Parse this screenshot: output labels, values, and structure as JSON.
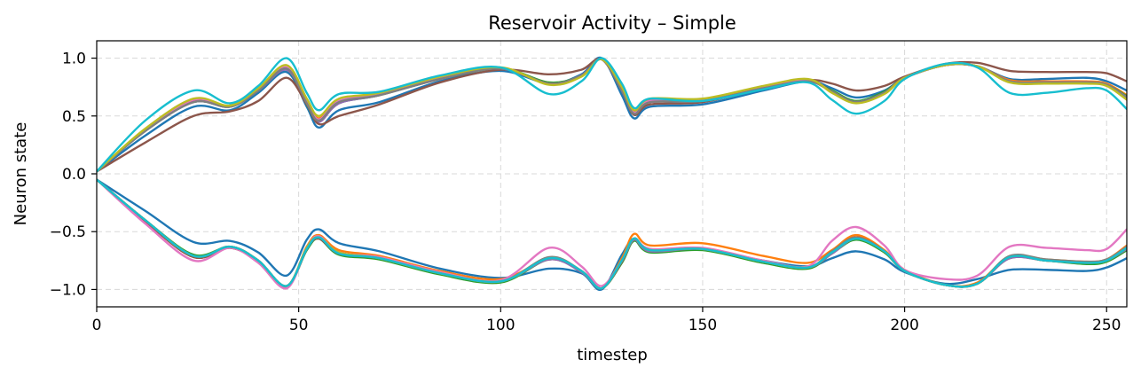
{
  "chart_data": {
    "type": "line",
    "title": "Reservoir Activity – Simple",
    "xlabel": "timestep",
    "ylabel": "Neuron state",
    "xlim": [
      0,
      255
    ],
    "ylim": [
      -1.15,
      1.15
    ],
    "grid": true,
    "legend": "none",
    "xticks": [
      0,
      50,
      100,
      150,
      200,
      250
    ],
    "xtick_labels": [
      "0",
      "50",
      "100",
      "150",
      "200",
      "250"
    ],
    "yticks": [
      1.0,
      0.5,
      0.0,
      -0.5,
      -1.0
    ],
    "ytick_labels": [
      "1.0",
      "0.5",
      "0.0",
      "−0.5",
      "−1.0"
    ],
    "x": [
      0,
      12,
      24,
      33,
      40,
      47,
      52,
      55,
      60,
      70,
      85,
      100,
      112,
      120,
      125,
      130,
      133,
      137,
      150,
      165,
      176,
      182,
      188,
      195,
      200,
      210,
      218,
      226,
      235,
      245,
      250,
      255
    ],
    "series": [
      {
        "color": "#1f77b4",
        "values": [
          0.02,
          0.33,
          0.58,
          0.55,
          0.7,
          0.88,
          0.58,
          0.4,
          0.55,
          0.62,
          0.8,
          0.89,
          0.78,
          0.86,
          1.0,
          0.68,
          0.48,
          0.58,
          0.6,
          0.72,
          0.8,
          0.74,
          0.66,
          0.72,
          0.83,
          0.94,
          0.93,
          0.82,
          0.82,
          0.83,
          0.8,
          0.72
        ]
      },
      {
        "color": "#ff7f0e",
        "values": [
          0.02,
          0.38,
          0.64,
          0.59,
          0.73,
          0.92,
          0.64,
          0.48,
          0.63,
          0.69,
          0.83,
          0.91,
          0.78,
          0.85,
          0.99,
          0.74,
          0.54,
          0.64,
          0.64,
          0.75,
          0.81,
          0.71,
          0.62,
          0.7,
          0.83,
          0.94,
          0.93,
          0.81,
          0.8,
          0.8,
          0.78,
          0.68
        ]
      },
      {
        "color": "#2ca02c",
        "values": [
          0.02,
          0.37,
          0.62,
          0.58,
          0.72,
          0.9,
          0.6,
          0.45,
          0.61,
          0.68,
          0.82,
          0.91,
          0.79,
          0.85,
          0.99,
          0.72,
          0.52,
          0.62,
          0.63,
          0.74,
          0.8,
          0.72,
          0.63,
          0.71,
          0.83,
          0.94,
          0.93,
          0.8,
          0.79,
          0.79,
          0.77,
          0.67
        ]
      },
      {
        "color": "#d62728",
        "values": [
          0.02,
          0.38,
          0.63,
          0.59,
          0.73,
          0.91,
          0.62,
          0.46,
          0.62,
          0.69,
          0.83,
          0.91,
          0.78,
          0.85,
          0.99,
          0.73,
          0.53,
          0.63,
          0.64,
          0.75,
          0.81,
          0.71,
          0.62,
          0.7,
          0.83,
          0.94,
          0.93,
          0.8,
          0.79,
          0.79,
          0.77,
          0.66
        ]
      },
      {
        "color": "#9467bd",
        "values": [
          0.02,
          0.37,
          0.62,
          0.58,
          0.72,
          0.9,
          0.61,
          0.45,
          0.61,
          0.68,
          0.82,
          0.91,
          0.78,
          0.85,
          0.99,
          0.72,
          0.52,
          0.62,
          0.63,
          0.74,
          0.8,
          0.71,
          0.62,
          0.7,
          0.83,
          0.94,
          0.93,
          0.8,
          0.79,
          0.79,
          0.77,
          0.66
        ]
      },
      {
        "color": "#8c564b",
        "values": [
          0.02,
          0.27,
          0.5,
          0.54,
          0.63,
          0.83,
          0.6,
          0.43,
          0.5,
          0.6,
          0.79,
          0.9,
          0.86,
          0.9,
          0.99,
          0.72,
          0.51,
          0.6,
          0.62,
          0.74,
          0.81,
          0.78,
          0.72,
          0.76,
          0.84,
          0.95,
          0.96,
          0.89,
          0.88,
          0.88,
          0.87,
          0.8
        ]
      },
      {
        "color": "#e377c2",
        "values": [
          0.02,
          0.38,
          0.64,
          0.59,
          0.73,
          0.92,
          0.63,
          0.47,
          0.63,
          0.69,
          0.83,
          0.91,
          0.78,
          0.85,
          0.99,
          0.73,
          0.53,
          0.63,
          0.64,
          0.75,
          0.81,
          0.71,
          0.62,
          0.7,
          0.83,
          0.94,
          0.93,
          0.8,
          0.79,
          0.79,
          0.77,
          0.66
        ]
      },
      {
        "color": "#7f7f7f",
        "values": [
          0.02,
          0.37,
          0.62,
          0.58,
          0.72,
          0.91,
          0.61,
          0.46,
          0.62,
          0.68,
          0.82,
          0.91,
          0.78,
          0.85,
          0.99,
          0.72,
          0.52,
          0.62,
          0.63,
          0.74,
          0.8,
          0.71,
          0.62,
          0.7,
          0.83,
          0.94,
          0.93,
          0.8,
          0.79,
          0.79,
          0.77,
          0.66
        ]
      },
      {
        "color": "#bcbd22",
        "values": [
          0.02,
          0.39,
          0.65,
          0.59,
          0.74,
          0.94,
          0.65,
          0.5,
          0.65,
          0.7,
          0.84,
          0.92,
          0.77,
          0.84,
          0.99,
          0.75,
          0.55,
          0.65,
          0.65,
          0.76,
          0.82,
          0.7,
          0.61,
          0.69,
          0.83,
          0.94,
          0.93,
          0.79,
          0.78,
          0.78,
          0.76,
          0.64
        ]
      },
      {
        "color": "#17becf",
        "values": [
          0.02,
          0.46,
          0.72,
          0.61,
          0.76,
          1.0,
          0.7,
          0.55,
          0.69,
          0.71,
          0.85,
          0.92,
          0.69,
          0.8,
          1.0,
          0.78,
          0.57,
          0.65,
          0.63,
          0.73,
          0.79,
          0.64,
          0.52,
          0.63,
          0.82,
          0.95,
          0.92,
          0.7,
          0.7,
          0.74,
          0.72,
          0.56
        ]
      },
      {
        "color": "#1f77b4",
        "values": [
          -0.05,
          -0.32,
          -0.59,
          -0.58,
          -0.68,
          -0.88,
          -0.57,
          -0.48,
          -0.6,
          -0.67,
          -0.82,
          -0.9,
          -0.82,
          -0.86,
          -1.0,
          -0.7,
          -0.56,
          -0.65,
          -0.65,
          -0.75,
          -0.8,
          -0.73,
          -0.67,
          -0.74,
          -0.85,
          -0.95,
          -0.91,
          -0.83,
          -0.83,
          -0.84,
          -0.81,
          -0.73
        ]
      },
      {
        "color": "#ff7f0e",
        "values": [
          -0.05,
          -0.4,
          -0.72,
          -0.63,
          -0.75,
          -0.98,
          -0.63,
          -0.53,
          -0.66,
          -0.71,
          -0.84,
          -0.91,
          -0.74,
          -0.84,
          -0.99,
          -0.73,
          -0.52,
          -0.62,
          -0.6,
          -0.71,
          -0.77,
          -0.66,
          -0.53,
          -0.66,
          -0.83,
          -0.96,
          -0.94,
          -0.72,
          -0.74,
          -0.76,
          -0.74,
          -0.62
        ]
      },
      {
        "color": "#2ca02c",
        "values": [
          -0.05,
          -0.4,
          -0.7,
          -0.63,
          -0.75,
          -0.97,
          -0.66,
          -0.56,
          -0.7,
          -0.74,
          -0.87,
          -0.94,
          -0.74,
          -0.85,
          -0.99,
          -0.77,
          -0.58,
          -0.68,
          -0.66,
          -0.77,
          -0.82,
          -0.69,
          -0.57,
          -0.68,
          -0.84,
          -0.96,
          -0.95,
          -0.73,
          -0.75,
          -0.78,
          -0.76,
          -0.66
        ]
      },
      {
        "color": "#d62728",
        "values": [
          -0.05,
          -0.41,
          -0.72,
          -0.64,
          -0.76,
          -0.98,
          -0.65,
          -0.55,
          -0.69,
          -0.73,
          -0.86,
          -0.93,
          -0.73,
          -0.84,
          -0.99,
          -0.75,
          -0.56,
          -0.66,
          -0.65,
          -0.76,
          -0.81,
          -0.68,
          -0.55,
          -0.67,
          -0.84,
          -0.96,
          -0.95,
          -0.72,
          -0.75,
          -0.77,
          -0.75,
          -0.64
        ]
      },
      {
        "color": "#9467bd",
        "values": [
          -0.05,
          -0.4,
          -0.71,
          -0.63,
          -0.75,
          -0.97,
          -0.64,
          -0.55,
          -0.68,
          -0.73,
          -0.86,
          -0.93,
          -0.74,
          -0.85,
          -0.99,
          -0.76,
          -0.57,
          -0.67,
          -0.65,
          -0.76,
          -0.81,
          -0.69,
          -0.56,
          -0.67,
          -0.84,
          -0.96,
          -0.95,
          -0.73,
          -0.75,
          -0.77,
          -0.75,
          -0.65
        ]
      },
      {
        "color": "#8c564b",
        "values": [
          -0.05,
          -0.41,
          -0.72,
          -0.64,
          -0.76,
          -0.98,
          -0.65,
          -0.56,
          -0.69,
          -0.73,
          -0.86,
          -0.93,
          -0.73,
          -0.84,
          -0.99,
          -0.76,
          -0.56,
          -0.66,
          -0.65,
          -0.76,
          -0.81,
          -0.68,
          -0.55,
          -0.67,
          -0.84,
          -0.96,
          -0.95,
          -0.72,
          -0.75,
          -0.77,
          -0.75,
          -0.64
        ]
      },
      {
        "color": "#e377c2",
        "values": [
          -0.05,
          -0.43,
          -0.75,
          -0.64,
          -0.77,
          -0.99,
          -0.64,
          -0.54,
          -0.68,
          -0.72,
          -0.85,
          -0.92,
          -0.64,
          -0.8,
          -0.97,
          -0.75,
          -0.56,
          -0.65,
          -0.64,
          -0.75,
          -0.8,
          -0.58,
          -0.46,
          -0.62,
          -0.83,
          -0.91,
          -0.88,
          -0.63,
          -0.64,
          -0.66,
          -0.65,
          -0.48
        ]
      },
      {
        "color": "#7f7f7f",
        "values": [
          -0.05,
          -0.4,
          -0.71,
          -0.63,
          -0.75,
          -0.97,
          -0.64,
          -0.55,
          -0.68,
          -0.73,
          -0.86,
          -0.93,
          -0.72,
          -0.84,
          -0.99,
          -0.75,
          -0.56,
          -0.66,
          -0.65,
          -0.76,
          -0.81,
          -0.67,
          -0.55,
          -0.67,
          -0.84,
          -0.96,
          -0.95,
          -0.71,
          -0.74,
          -0.76,
          -0.74,
          -0.63
        ]
      },
      {
        "color": "#bcbd22",
        "values": [
          -0.05,
          -0.4,
          -0.71,
          -0.63,
          -0.75,
          -0.97,
          -0.64,
          -0.55,
          -0.68,
          -0.73,
          -0.86,
          -0.93,
          -0.73,
          -0.84,
          -0.99,
          -0.75,
          -0.56,
          -0.66,
          -0.65,
          -0.76,
          -0.81,
          -0.68,
          -0.56,
          -0.67,
          -0.84,
          -0.96,
          -0.95,
          -0.72,
          -0.75,
          -0.77,
          -0.75,
          -0.64
        ]
      },
      {
        "color": "#17becf",
        "values": [
          -0.05,
          -0.4,
          -0.71,
          -0.63,
          -0.75,
          -0.97,
          -0.65,
          -0.55,
          -0.69,
          -0.73,
          -0.86,
          -0.93,
          -0.73,
          -0.84,
          -0.99,
          -0.75,
          -0.56,
          -0.66,
          -0.65,
          -0.76,
          -0.81,
          -0.68,
          -0.56,
          -0.67,
          -0.84,
          -0.96,
          -0.95,
          -0.72,
          -0.75,
          -0.77,
          -0.75,
          -0.64
        ]
      }
    ]
  }
}
